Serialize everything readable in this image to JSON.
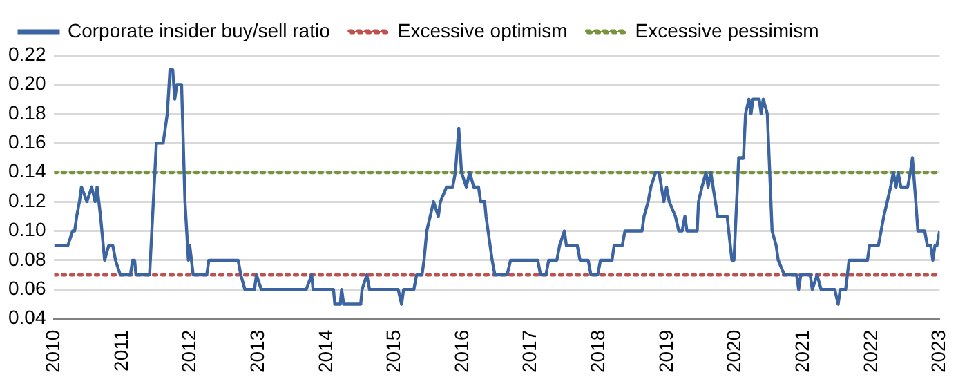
{
  "chart_data": {
    "type": "line",
    "xlim": [
      2010,
      2023
    ],
    "xticks": [
      2010,
      2011,
      2012,
      2013,
      2014,
      2015,
      2016,
      2017,
      2018,
      2019,
      2020,
      2021,
      2022,
      2023
    ],
    "ylim": [
      0.04,
      0.22
    ],
    "yticks": [
      0.04,
      0.06,
      0.08,
      {
        "value": 0.1,
        "label": "0.10"
      },
      0.12,
      0.14,
      0.16,
      0.18,
      {
        "value": 0.2,
        "label": "0.20"
      },
      0.22
    ],
    "grid": "y",
    "legend": "top",
    "line_style": "solid",
    "marker": "none",
    "series": [
      {
        "name": "Corporate insider buy/sell ratio",
        "color": "#3c64a0",
        "x": [
          2010.0,
          2010.2,
          2010.27,
          2010.3,
          2010.33,
          2010.37,
          2010.4,
          2010.48,
          2010.55,
          2010.6,
          2010.63,
          2010.68,
          2010.74,
          2010.8,
          2010.86,
          2010.9,
          2010.97,
          2011.12,
          2011.15,
          2011.18,
          2011.2,
          2011.4,
          2011.5,
          2011.6,
          2011.66,
          2011.7,
          2011.74,
          2011.77,
          2011.8,
          2011.87,
          2011.92,
          2011.97,
          2011.99,
          2012.04,
          2012.24,
          2012.27,
          2012.7,
          2012.74,
          2012.8,
          2012.94,
          2012.97,
          2013.04,
          2013.7,
          2013.78,
          2013.8,
          2014.1,
          2014.12,
          2014.2,
          2014.22,
          2014.25,
          2014.5,
          2014.52,
          2014.59,
          2014.63,
          2015.05,
          2015.1,
          2015.13,
          2015.28,
          2015.32,
          2015.4,
          2015.43,
          2015.47,
          2015.52,
          2015.57,
          2015.64,
          2015.67,
          2015.76,
          2015.85,
          2015.89,
          2015.94,
          2015.98,
          2016.05,
          2016.1,
          2016.16,
          2016.23,
          2016.26,
          2016.32,
          2016.34,
          2016.43,
          2016.47,
          2016.65,
          2016.7,
          2017.1,
          2017.14,
          2017.22,
          2017.26,
          2017.38,
          2017.42,
          2017.49,
          2017.52,
          2017.68,
          2017.72,
          2017.84,
          2017.88,
          2017.98,
          2018.02,
          2018.19,
          2018.22,
          2018.34,
          2018.38,
          2018.63,
          2018.66,
          2018.72,
          2018.76,
          2018.83,
          2018.88,
          2018.95,
          2018.99,
          2019.03,
          2019.12,
          2019.17,
          2019.22,
          2019.26,
          2019.29,
          2019.44,
          2019.46,
          2019.51,
          2019.57,
          2019.6,
          2019.64,
          2019.74,
          2019.88,
          2019.95,
          2019.98,
          2020.05,
          2020.12,
          2020.15,
          2020.2,
          2020.23,
          2020.26,
          2020.35,
          2020.38,
          2020.41,
          2020.47,
          2020.54,
          2020.6,
          2020.63,
          2020.72,
          2020.9,
          2020.93,
          2020.96,
          2021.1,
          2021.13,
          2021.2,
          2021.26,
          2021.46,
          2021.51,
          2021.54,
          2021.62,
          2021.67,
          2021.94,
          2021.97,
          2022.1,
          2022.14,
          2022.18,
          2022.23,
          2022.28,
          2022.32,
          2022.36,
          2022.39,
          2022.43,
          2022.53,
          2022.57,
          2022.6,
          2022.65,
          2022.68,
          2022.78,
          2022.82,
          2022.87,
          2022.9,
          2022.93,
          2022.96,
          2023.0
        ],
        "values": [
          0.09,
          0.09,
          0.1,
          0.1,
          0.11,
          0.12,
          0.13,
          0.12,
          0.13,
          0.12,
          0.13,
          0.11,
          0.08,
          0.09,
          0.09,
          0.08,
          0.07,
          0.07,
          0.08,
          0.08,
          0.07,
          0.07,
          0.16,
          0.16,
          0.18,
          0.21,
          0.21,
          0.19,
          0.2,
          0.2,
          0.12,
          0.08,
          0.09,
          0.07,
          0.07,
          0.08,
          0.08,
          0.07,
          0.06,
          0.06,
          0.07,
          0.06,
          0.06,
          0.07,
          0.06,
          0.06,
          0.05,
          0.05,
          0.06,
          0.05,
          0.05,
          0.06,
          0.07,
          0.06,
          0.06,
          0.05,
          0.06,
          0.06,
          0.07,
          0.07,
          0.08,
          0.1,
          0.11,
          0.12,
          0.11,
          0.12,
          0.13,
          0.13,
          0.14,
          0.17,
          0.14,
          0.13,
          0.14,
          0.13,
          0.13,
          0.12,
          0.12,
          0.11,
          0.08,
          0.07,
          0.07,
          0.08,
          0.08,
          0.07,
          0.07,
          0.08,
          0.08,
          0.09,
          0.1,
          0.09,
          0.09,
          0.08,
          0.08,
          0.07,
          0.07,
          0.08,
          0.08,
          0.09,
          0.09,
          0.1,
          0.1,
          0.11,
          0.12,
          0.13,
          0.14,
          0.14,
          0.12,
          0.13,
          0.12,
          0.11,
          0.1,
          0.1,
          0.11,
          0.1,
          0.1,
          0.12,
          0.13,
          0.14,
          0.13,
          0.14,
          0.11,
          0.11,
          0.08,
          0.08,
          0.15,
          0.15,
          0.18,
          0.19,
          0.18,
          0.19,
          0.19,
          0.18,
          0.19,
          0.18,
          0.1,
          0.09,
          0.08,
          0.07,
          0.07,
          0.06,
          0.07,
          0.07,
          0.06,
          0.07,
          0.06,
          0.06,
          0.05,
          0.06,
          0.06,
          0.08,
          0.08,
          0.09,
          0.09,
          0.1,
          0.11,
          0.12,
          0.13,
          0.14,
          0.13,
          0.14,
          0.13,
          0.13,
          0.14,
          0.15,
          0.12,
          0.1,
          0.1,
          0.09,
          0.09,
          0.08,
          0.09,
          0.09,
          0.1
        ]
      }
    ],
    "ref_lines": [
      {
        "axis": "y",
        "value": 0.07,
        "label": "Excessive optimism",
        "color": "#c0504d",
        "line_style": "dotted"
      },
      {
        "axis": "y",
        "value": 0.14,
        "label": "Excessive pessimism",
        "color": "#77933c",
        "line_style": "dotted"
      }
    ]
  }
}
